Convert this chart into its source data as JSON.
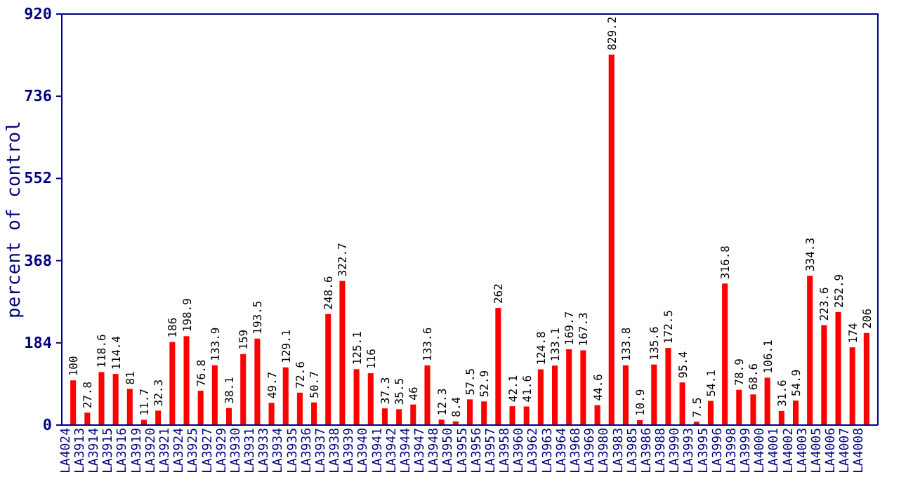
{
  "chart_data": {
    "type": "bar",
    "ylabel": "percent of control",
    "categories": [
      "LA4024",
      "LA3913",
      "LA3914",
      "LA3915",
      "LA3916",
      "LA3919",
      "LA3920",
      "LA3921",
      "LA3924",
      "LA3925",
      "LA3927",
      "LA3929",
      "LA3930",
      "LA3931",
      "LA3933",
      "LA3934",
      "LA3935",
      "LA3936",
      "LA3937",
      "LA3938",
      "LA3939",
      "LA3940",
      "LA3941",
      "LA3942",
      "LA3944",
      "LA3947",
      "LA3948",
      "LA3950",
      "LA3955",
      "LA3956",
      "LA3957",
      "LA3958",
      "LA3960",
      "LA3962",
      "LA3963",
      "LA3964",
      "LA3968",
      "LA3969",
      "LA3980",
      "LA3983",
      "LA3985",
      "LA3986",
      "LA3988",
      "LA3990",
      "LA3993",
      "LA3995",
      "LA3996",
      "LA3998",
      "LA3999",
      "LA4000",
      "LA4001",
      "LA4002",
      "LA4003",
      "LA4005",
      "LA4006",
      "LA4007",
      "LA4008"
    ],
    "values": [
      100,
      27.8,
      118.6,
      114.4,
      81,
      11.7,
      32.3,
      186,
      198.9,
      76.8,
      133.9,
      38.1,
      159,
      193.5,
      49.7,
      129.1,
      72.6,
      50.7,
      248.6,
      322.7,
      125.1,
      116,
      37.3,
      35.5,
      46,
      133.6,
      12.3,
      8.4,
      57.5,
      52.9,
      262,
      42.1,
      41.6,
      124.8,
      133.1,
      169.7,
      167.3,
      44.6,
      829.2,
      133.8,
      10.9,
      135.6,
      172.5,
      95.4,
      7.5,
      54.1,
      316.8,
      78.9,
      68.6,
      106.1,
      31.6,
      54.9,
      334.3,
      223.6,
      252.9,
      174,
      206
    ],
    "color": "#ff0000",
    "ylim": [
      0,
      920
    ],
    "yticks": [
      0,
      184,
      368,
      552,
      736,
      920
    ],
    "data_labels": true,
    "grid": false
  }
}
